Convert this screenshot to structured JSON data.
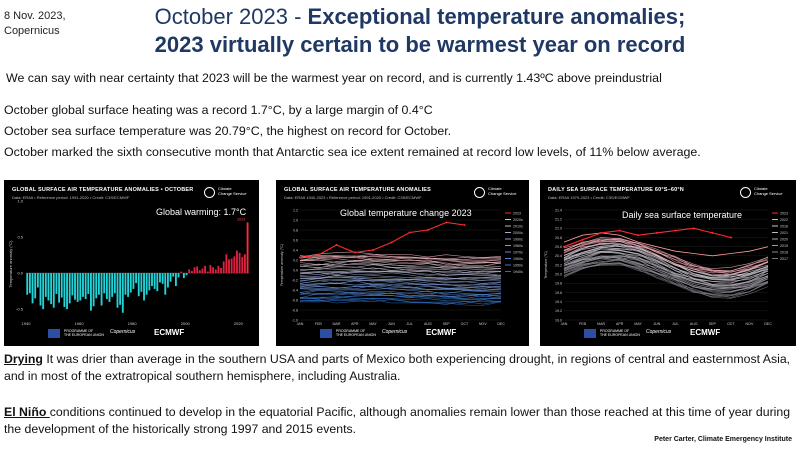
{
  "header": {
    "date_source": "8 Nov. 2023,\nCopernicus",
    "title_part1": "October 2023 - ",
    "title_part1_bold": "Exceptional temperature anomalies;",
    "title_line2": "2023 virtually certain to be warmest year on record"
  },
  "lead": "We can say with near certainty that 2023 will be the warmest year on record, and is currently 1.43ºC above preindustrial",
  "points": [
    "October global surface heating was a record 1.7°C, by a large margin of 0.4°C",
    "October sea surface temperature was 20.79°C, the highest on record for October.",
    "October marked the sixth consecutive month that Antarctic sea ice extent remained at record low levels, of 11% below average."
  ],
  "colors": {
    "title": "#1f3864",
    "cyan": "#22d3d8",
    "red": "#e0202a",
    "panel_bg": "#000000"
  },
  "footer_logos": {
    "eu_text": "PROGRAMME OF\nTHE EUROPEAN UNION",
    "copernicus": "Copernicus",
    "ecmwf": "ECMWF",
    "c3s_text": "Climate\nChange Service"
  },
  "chart_data": [
    {
      "type": "bar",
      "title": "GLOBAL SURFACE AIR TEMPERATURE ANOMALIES • OCTOBER",
      "subtitle": "Data: ERA5 • Reference period: 1991-2020 • Credit: C3S/ECMWF",
      "overlay": "Global warming:  1.7°C",
      "ylabel": "Temperature anomaly (°C)",
      "xticks": [
        "1940",
        "1960",
        "1980",
        "2000",
        "2020"
      ],
      "yticks": [
        "1.0",
        "0.5",
        "0.0",
        "-0.5"
      ],
      "ylim": [
        -0.65,
        0.9
      ],
      "start_year": 1940,
      "values": [
        -0.3,
        -0.28,
        -0.42,
        -0.35,
        -0.2,
        -0.45,
        -0.5,
        -0.33,
        -0.38,
        -0.43,
        -0.48,
        -0.29,
        -0.41,
        -0.34,
        -0.47,
        -0.5,
        -0.42,
        -0.31,
        -0.37,
        -0.4,
        -0.38,
        -0.33,
        -0.36,
        -0.29,
        -0.52,
        -0.46,
        -0.35,
        -0.3,
        -0.45,
        -0.28,
        -0.36,
        -0.4,
        -0.33,
        -0.28,
        -0.48,
        -0.44,
        -0.55,
        -0.3,
        -0.33,
        -0.27,
        -0.22,
        -0.14,
        -0.32,
        -0.26,
        -0.38,
        -0.3,
        -0.24,
        -0.18,
        -0.22,
        -0.25,
        -0.13,
        -0.15,
        -0.3,
        -0.2,
        -0.12,
        -0.05,
        -0.18,
        -0.06,
        0.02,
        -0.07,
        -0.03,
        0.05,
        0.03,
        0.08,
        0.09,
        0.04,
        0.06,
        0.1,
        0.02,
        0.11,
        0.08,
        0.05,
        0.1,
        0.07,
        0.16,
        0.26,
        0.19,
        0.2,
        0.23,
        0.31,
        0.28,
        0.22,
        0.26,
        0.7
      ]
    },
    {
      "type": "line",
      "title": "GLOBAL SURFACE AIR TEMPERATURE ANOMALIES",
      "subtitle": "Data: ERA5 1940-2023 • Reference period: 1991-2020 • Credit: C3S/ECMWF",
      "overlay": "Global temperature change 2023",
      "ylabel": "Temperature anomaly (°C)",
      "categories": [
        "JAN",
        "FEB",
        "MAR",
        "APR",
        "MAY",
        "JUN",
        "JUL",
        "AUG",
        "SEP",
        "OCT",
        "NOV",
        "DEC"
      ],
      "yticks": [
        "1.2",
        "1.0",
        "0.8",
        "0.6",
        "0.4",
        "0.2",
        "0.0",
        "-0.2",
        "-0.4",
        "-0.6",
        "-0.8",
        "-1.0"
      ],
      "ylim": [
        -1.0,
        1.2
      ],
      "legend": [
        "2023",
        "2020s",
        "2010s",
        "2000s",
        "1990s",
        "1980s",
        "1970s",
        "1960s",
        "1950s",
        "1940s"
      ],
      "series_2023": [
        0.25,
        0.3,
        0.5,
        0.35,
        0.4,
        0.55,
        0.75,
        0.8,
        0.95,
        0.9
      ]
    },
    {
      "type": "line",
      "title": "DAILY SEA SURFACE TEMPERATURE 60°S–60°N",
      "subtitle": "Data: ERA5 1979-2023 • Credit: C3S/ECMWF",
      "overlay": "Daily sea surface temperature",
      "ylabel": "Temperature (°C)",
      "categories": [
        "JAN",
        "FEB",
        "MAR",
        "APR",
        "MAY",
        "JUN",
        "JUL",
        "AUG",
        "SEP",
        "OCT",
        "NOV",
        "DEC"
      ],
      "yticks": [
        "21.4",
        "21.2",
        "21.0",
        "20.8",
        "20.6",
        "20.4",
        "20.2",
        "20.0",
        "19.8",
        "19.6",
        "19.4",
        "19.2",
        "19.0"
      ],
      "ylim": [
        19.0,
        21.4
      ],
      "legend": [
        "2023",
        "2022",
        "2016",
        "2021",
        "2020",
        "2019",
        "2018",
        "2017"
      ],
      "series_2023": [
        20.6,
        20.75,
        20.9,
        20.95,
        20.85,
        20.9,
        20.95,
        21.0,
        20.9,
        20.8
      ],
      "series_2016": [
        20.7,
        20.85,
        20.9,
        20.85,
        20.7,
        20.6,
        20.5,
        20.45,
        20.4,
        20.45,
        20.5,
        20.6
      ]
    }
  ],
  "drying_label": "Drying",
  "drying_text": " It was drier than average in the southern USA and parts of Mexico both experiencing drought, in regions of central and easternmost Asia, and in most of the extratropical southern hemisphere, including Australia.",
  "elnino_label": "El Niño ",
  "elnino_text": "conditions continued to develop in the equatorial Pacific, although anomalies remain lower than those reached at this time of year during the development of the historically strong 1997 and 2015 events.",
  "credit": "Peter Carter, Climate Emergency Institute"
}
